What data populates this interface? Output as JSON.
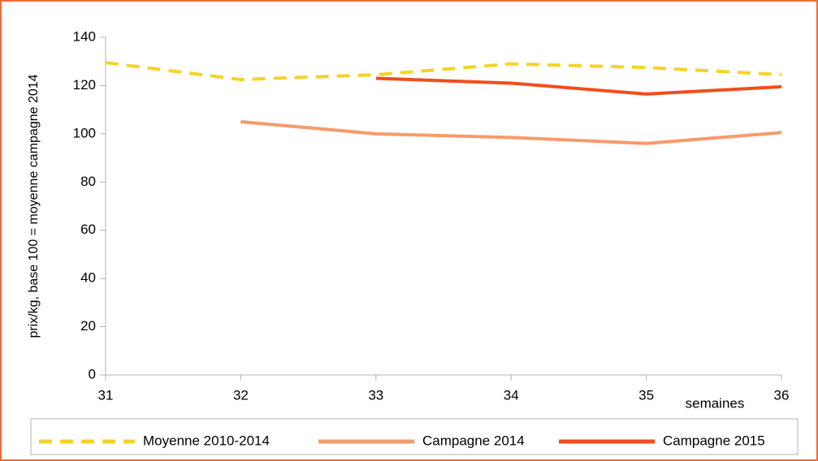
{
  "chart_data": {
    "type": "line",
    "x_label": "semaines",
    "y_label": "prix/kg, base 100 = moyenne campagne 2014",
    "x": [
      31,
      32,
      33,
      34,
      35,
      36
    ],
    "xlim": [
      31,
      36
    ],
    "xticks": [
      31,
      32,
      33,
      34,
      35,
      36
    ],
    "ylim": [
      0,
      140
    ],
    "yticks": [
      0,
      20,
      40,
      60,
      80,
      100,
      120,
      140
    ],
    "grid": false,
    "legend": "bottom",
    "series": [
      {
        "name": "Moyenne 2010-2014",
        "color": "#f5d327",
        "dashed": true,
        "values": [
          129.5,
          122.5,
          124.5,
          129,
          127.5,
          124.5
        ]
      },
      {
        "name": "Campagne 2014",
        "color": "#f79a6a",
        "dashed": false,
        "values": [
          null,
          105,
          100,
          98.5,
          96,
          100.5
        ]
      },
      {
        "name": "Campagne 2015",
        "color": "#f24d1a",
        "dashed": false,
        "values": [
          null,
          null,
          123,
          121,
          116.5,
          119.5
        ]
      }
    ]
  }
}
